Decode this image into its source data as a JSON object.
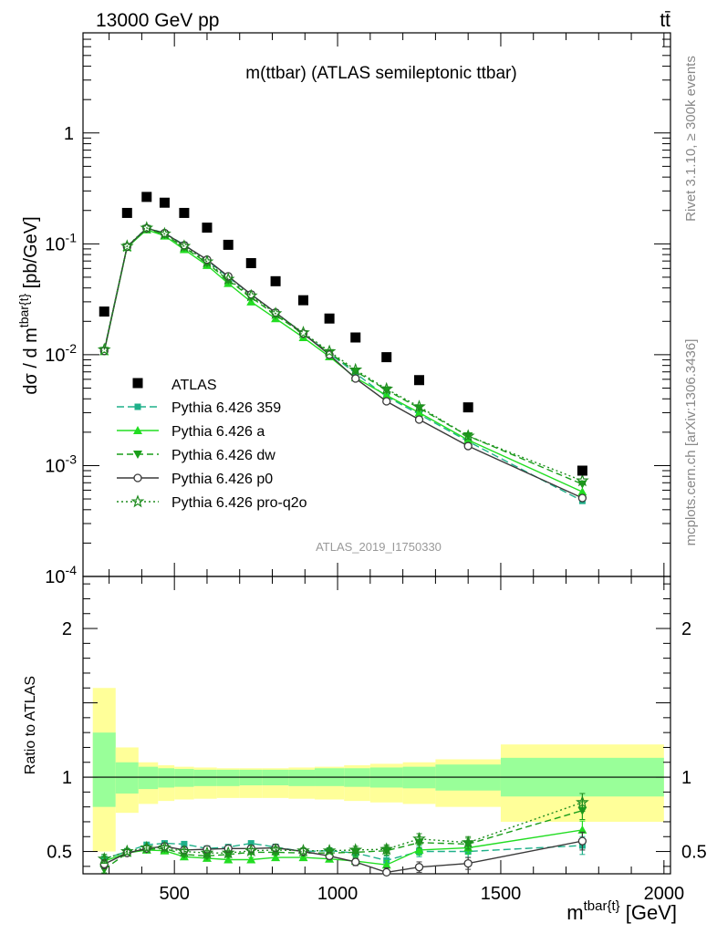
{
  "header": {
    "left": "13000 GeV pp",
    "right": "tt̄"
  },
  "side_labels": {
    "rivet": "Rivet 3.1.10, ≥ 300k events",
    "mcplots": "mcplots.cern.ch [arXiv:1306.3436]"
  },
  "watermark": "ATLAS_2019_I1750330",
  "colors": {
    "atlas": "#000000",
    "p359": "#1fb08a",
    "pa": "#22dd22",
    "pdw": "#1a9e1a",
    "pp0": "#3a3a3a",
    "pq2o": "#1f8c1f",
    "band_outer": "#ffff99",
    "band_inner": "#99ff99"
  },
  "chart_data": [
    {
      "type": "line",
      "name": "main",
      "title": "m(ttbar) (ATLAS semileptonic ttbar)",
      "ylabel": "dσ / d m^{tbar{t}} [pb/GeV]",
      "yscale": "log",
      "xlim": [
        220,
        2020
      ],
      "ylim": [
        0.0001,
        8
      ],
      "ytick_labels": [
        {
          "label": "1",
          "value": 1
        },
        {
          "label": "10^-1",
          "value": 0.1
        },
        {
          "label": "10^-2",
          "value": 0.01
        },
        {
          "label": "10^-3",
          "value": 0.001
        },
        {
          "label": "10^-4",
          "value": 0.0001
        }
      ],
      "x": [
        285,
        355,
        415,
        470,
        530,
        600,
        665,
        735,
        810,
        895,
        975,
        1055,
        1150,
        1250,
        1400,
        1750
      ],
      "atlas": [
        0.0245,
        0.19,
        0.265,
        0.235,
        0.19,
        0.14,
        0.098,
        0.067,
        0.046,
        0.031,
        0.0212,
        0.0143,
        0.0095,
        0.0059,
        0.00335,
        0.0009
      ],
      "series": [
        {
          "name": "Pythia 6.426 359",
          "key": "p359",
          "marker": "square",
          "dash": "8,4",
          "values": [
            0.011,
            0.094,
            0.139,
            0.125,
            0.098,
            0.071,
            0.05,
            0.035,
            0.024,
            0.0155,
            0.0103,
            0.0068,
            0.0042,
            0.0029,
            0.00165,
            0.00048
          ]
        },
        {
          "name": "Pythia 6.426 a",
          "key": "pa",
          "marker": "triangle-up",
          "dash": "",
          "values": [
            0.0107,
            0.093,
            0.134,
            0.118,
            0.089,
            0.064,
            0.044,
            0.03,
            0.0212,
            0.0143,
            0.0096,
            0.0062,
            0.0043,
            0.003,
            0.0017,
            0.00058
          ]
        },
        {
          "name": "Pythia 6.426 dw",
          "key": "pdw",
          "marker": "triangle-down",
          "dash": "7,4",
          "values": [
            0.0109,
            0.094,
            0.137,
            0.121,
            0.093,
            0.067,
            0.047,
            0.033,
            0.0228,
            0.0154,
            0.0104,
            0.0071,
            0.0048,
            0.0033,
            0.00185,
            0.00068
          ]
        },
        {
          "name": "Pythia 6.426 p0",
          "key": "pp0",
          "marker": "circle-open",
          "dash": "",
          "values": [
            0.0108,
            0.094,
            0.138,
            0.125,
            0.097,
            0.072,
            0.051,
            0.035,
            0.024,
            0.0155,
            0.01,
            0.0061,
            0.0038,
            0.0026,
            0.0015,
            0.00051
          ]
        },
        {
          "name": "Pythia 6.426 pro-q2o",
          "key": "pq2o",
          "marker": "star-open",
          "dash": "2,3",
          "values": [
            0.0111,
            0.095,
            0.139,
            0.123,
            0.095,
            0.069,
            0.048,
            0.034,
            0.0235,
            0.0158,
            0.0107,
            0.0073,
            0.0049,
            0.0034,
            0.00185,
            0.00073
          ]
        }
      ],
      "legend": {
        "position": "lower-left",
        "atlas_label": "ATLAS"
      }
    },
    {
      "type": "line",
      "name": "ratio",
      "ylabel": "Ratio to ATLAS",
      "xlabel": "m^{tbar{t}} [GeV]",
      "xlim": [
        220,
        2020
      ],
      "ylim": [
        0.35,
        2.35
      ],
      "xticks": [
        500,
        1000,
        1500,
        2000
      ],
      "ytick_labels": [
        {
          "label": "0.5",
          "value": 0.5
        },
        {
          "label": "1",
          "value": 1
        },
        {
          "label": "2",
          "value": 2
        }
      ],
      "bins": [
        250,
        320,
        390,
        450,
        500,
        560,
        630,
        700,
        770,
        850,
        930,
        1020,
        1100,
        1200,
        1300,
        1500,
        2000
      ],
      "band_outer": [
        [
          0.5,
          1.6
        ],
        [
          0.76,
          1.2
        ],
        [
          0.82,
          1.1
        ],
        [
          0.84,
          1.08
        ],
        [
          0.85,
          1.07
        ],
        [
          0.855,
          1.065
        ],
        [
          0.86,
          1.06
        ],
        [
          0.86,
          1.06
        ],
        [
          0.86,
          1.06
        ],
        [
          0.855,
          1.065
        ],
        [
          0.85,
          1.07
        ],
        [
          0.84,
          1.08
        ],
        [
          0.83,
          1.09
        ],
        [
          0.82,
          1.1
        ],
        [
          0.8,
          1.12
        ],
        [
          0.7,
          1.22
        ]
      ],
      "band_inner": [
        [
          0.8,
          1.3
        ],
        [
          0.89,
          1.1
        ],
        [
          0.92,
          1.07
        ],
        [
          0.93,
          1.06
        ],
        [
          0.935,
          1.055
        ],
        [
          0.94,
          1.05
        ],
        [
          0.94,
          1.05
        ],
        [
          0.945,
          1.05
        ],
        [
          0.945,
          1.05
        ],
        [
          0.94,
          1.05
        ],
        [
          0.94,
          1.06
        ],
        [
          0.935,
          1.06
        ],
        [
          0.93,
          1.065
        ],
        [
          0.925,
          1.07
        ],
        [
          0.91,
          1.085
        ],
        [
          0.87,
          1.13
        ]
      ],
      "reference_line": 1,
      "x": [
        285,
        355,
        415,
        470,
        530,
        600,
        665,
        735,
        810,
        895,
        975,
        1055,
        1150,
        1250,
        1400,
        1750
      ],
      "series": [
        {
          "name": "Pythia 6.426 359",
          "key": "p359",
          "marker": "square",
          "dash": "8,4",
          "values": [
            0.45,
            0.5,
            0.545,
            0.555,
            0.55,
            0.52,
            0.53,
            0.555,
            0.53,
            0.5,
            0.505,
            0.49,
            0.44,
            0.5,
            0.5,
            0.54
          ],
          "errors": [
            0.03,
            0.02,
            0.015,
            0.015,
            0.015,
            0.015,
            0.015,
            0.015,
            0.02,
            0.02,
            0.02,
            0.025,
            0.03,
            0.035,
            0.04,
            0.06
          ]
        },
        {
          "name": "Pythia 6.426 a",
          "key": "pa",
          "marker": "triangle-up",
          "dash": "",
          "values": [
            0.435,
            0.49,
            0.51,
            0.505,
            0.465,
            0.455,
            0.445,
            0.445,
            0.46,
            0.46,
            0.45,
            0.435,
            0.41,
            0.51,
            0.525,
            0.645
          ],
          "errors": [
            0.03,
            0.02,
            0.015,
            0.015,
            0.015,
            0.015,
            0.015,
            0.015,
            0.02,
            0.02,
            0.02,
            0.025,
            0.03,
            0.035,
            0.04,
            0.06
          ]
        },
        {
          "name": "Pythia 6.426 dw",
          "key": "pdw",
          "marker": "triangle-down",
          "dash": "7,4",
          "values": [
            0.38,
            0.49,
            0.515,
            0.52,
            0.48,
            0.47,
            0.48,
            0.495,
            0.495,
            0.49,
            0.49,
            0.495,
            0.505,
            0.56,
            0.55,
            0.775
          ],
          "errors": [
            0.03,
            0.02,
            0.015,
            0.015,
            0.015,
            0.015,
            0.015,
            0.015,
            0.02,
            0.02,
            0.02,
            0.025,
            0.03,
            0.035,
            0.04,
            0.06
          ]
        },
        {
          "name": "Pythia 6.426 p0",
          "key": "pp0",
          "marker": "circle-open",
          "dash": "",
          "values": [
            0.415,
            0.49,
            0.52,
            0.535,
            0.51,
            0.515,
            0.52,
            0.52,
            0.525,
            0.5,
            0.47,
            0.43,
            0.36,
            0.395,
            0.42,
            0.57
          ],
          "errors": [
            0.03,
            0.02,
            0.015,
            0.015,
            0.015,
            0.015,
            0.015,
            0.015,
            0.02,
            0.02,
            0.02,
            0.025,
            0.03,
            0.035,
            0.04,
            0.06
          ]
        },
        {
          "name": "Pythia 6.426 pro-q2o",
          "key": "pq2o",
          "marker": "star-open",
          "dash": "2,3",
          "values": [
            0.45,
            0.5,
            0.525,
            0.525,
            0.5,
            0.49,
            0.49,
            0.505,
            0.51,
            0.505,
            0.505,
            0.51,
            0.515,
            0.585,
            0.56,
            0.83
          ],
          "errors": [
            0.03,
            0.02,
            0.015,
            0.015,
            0.015,
            0.015,
            0.015,
            0.015,
            0.02,
            0.02,
            0.02,
            0.025,
            0.03,
            0.035,
            0.04,
            0.06
          ]
        }
      ]
    }
  ]
}
